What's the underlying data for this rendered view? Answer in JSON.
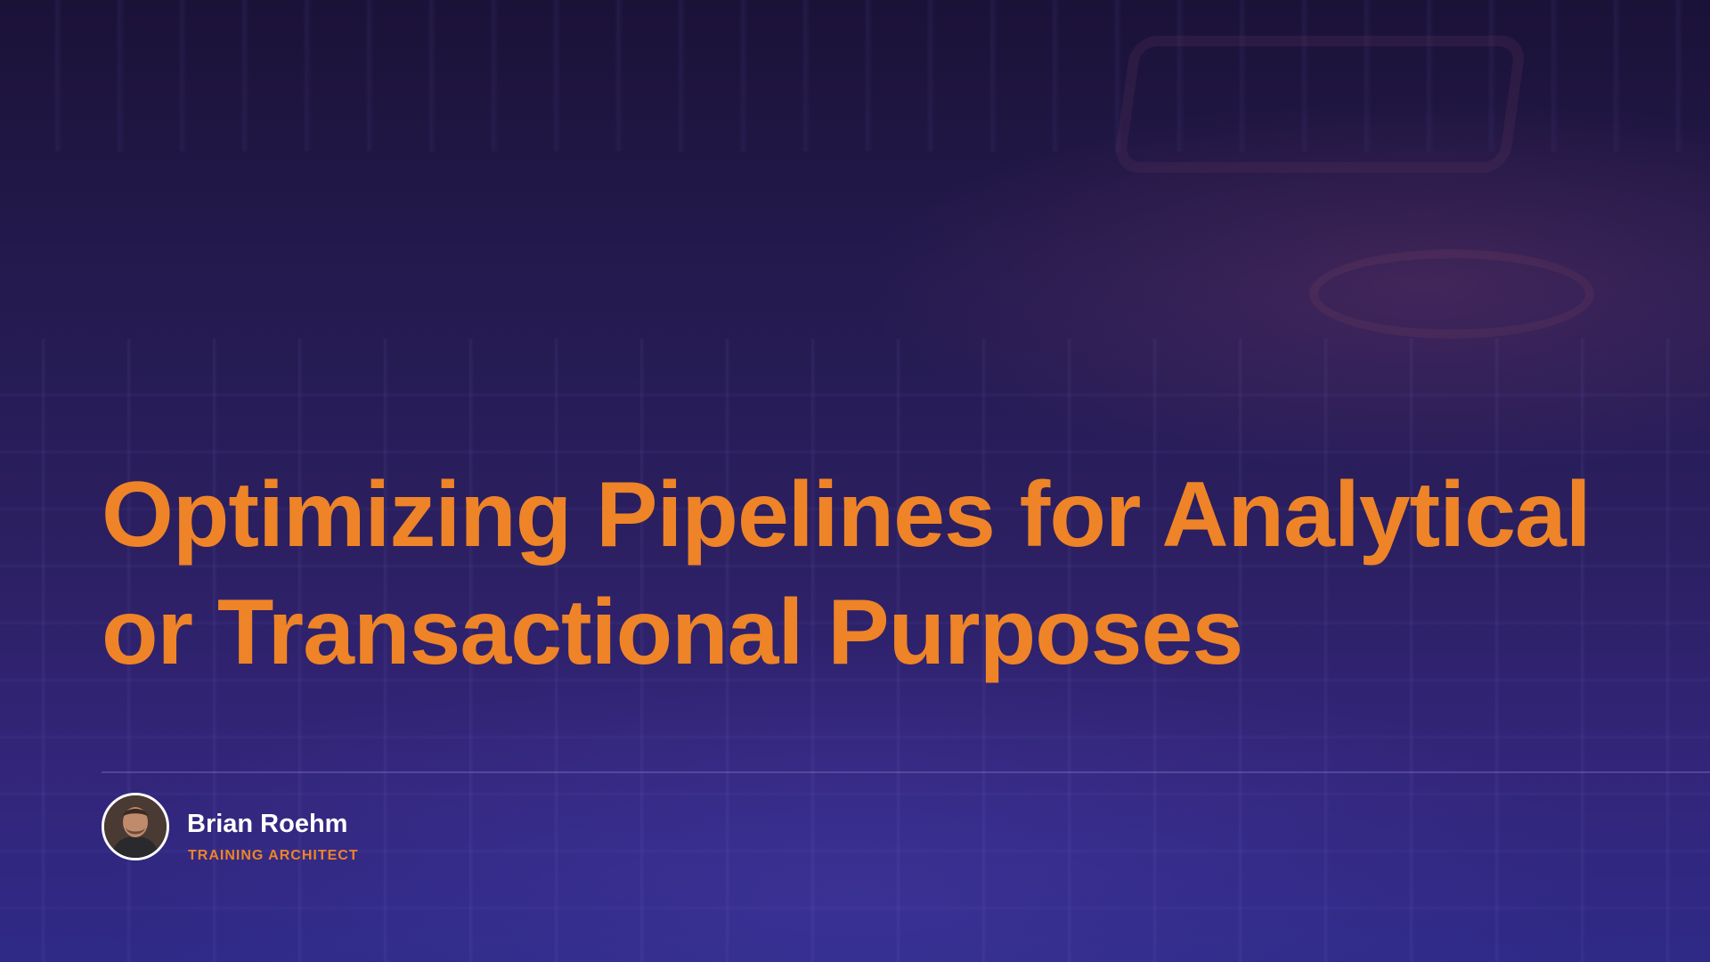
{
  "slide": {
    "title_lines": [
      "Optimizing Pipelines for Analytical",
      "or Transactional Purposes"
    ],
    "presenter": {
      "name": "Brian Roehm",
      "role": "TRAINING ARCHITECT"
    }
  },
  "colors": {
    "accent": "#ee8427",
    "name_text": "#ffffff",
    "background_dark": "#1b1238",
    "background_light": "#33257a"
  }
}
